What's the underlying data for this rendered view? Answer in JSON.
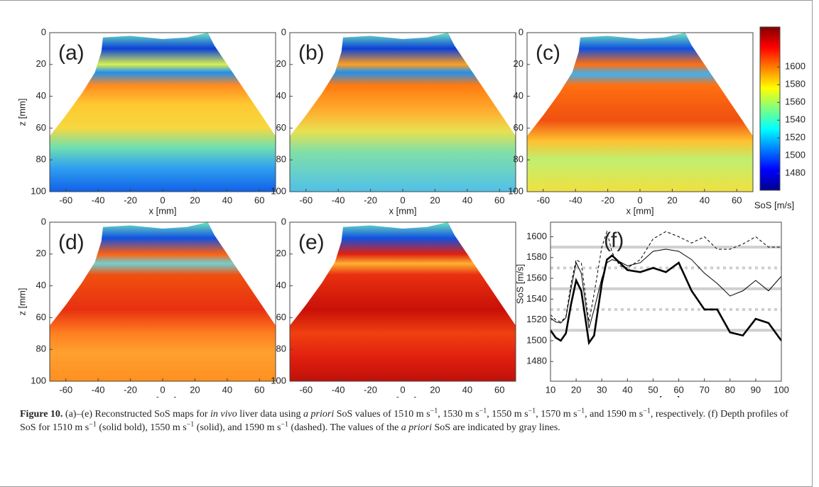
{
  "map_labels": [
    "(a)",
    "(b)",
    "(c)",
    "(d)",
    "(e)"
  ],
  "map_axes": {
    "xlabel": "x [mm]",
    "ylabel": "z [mm]",
    "xlim": [
      -70,
      70
    ],
    "ylim": [
      0,
      100
    ],
    "xticks": [
      -60,
      -40,
      -20,
      0,
      20,
      40,
      60
    ],
    "yticks": [
      0,
      20,
      40,
      60,
      80,
      100
    ]
  },
  "colorbar": {
    "label": "SoS [m/s]",
    "lim": [
      1461,
      1645
    ],
    "ticks": [
      1480,
      1500,
      1520,
      1540,
      1560,
      1580,
      1600
    ]
  },
  "chart_data": {
    "type": "line",
    "label": "(f)",
    "xlabel": "z [mm]",
    "ylabel": "SoS [m/s]",
    "xlim": [
      10,
      100
    ],
    "ylim": [
      1461,
      1614
    ],
    "xticks": [
      10,
      20,
      30,
      40,
      50,
      60,
      70,
      80,
      90,
      100
    ],
    "yticks": [
      1480,
      1500,
      1520,
      1540,
      1560,
      1580,
      1600
    ],
    "reference_lines": [
      1510,
      1530,
      1550,
      1570,
      1590
    ],
    "x": [
      10,
      12,
      14,
      16,
      18,
      20,
      22,
      25,
      27,
      30,
      32,
      34,
      37,
      40,
      45,
      50,
      55,
      60,
      65,
      70,
      75,
      80,
      85,
      90,
      95,
      100
    ],
    "series": [
      {
        "color": "#000000",
        "values": [
          1510,
          1503,
          1500,
          1507,
          1535,
          1558,
          1548,
          1498,
          1505,
          1555,
          1578,
          1582,
          1575,
          1568,
          1566,
          1570,
          1566,
          1575,
          1548,
          1530,
          1530,
          1508,
          1505,
          1521,
          1517,
          1500
        ]
      },
      {
        "color": "#000000",
        "values": [
          1522,
          1518,
          1517,
          1522,
          1550,
          1575,
          1565,
          1512,
          1530,
          1560,
          1575,
          1578,
          1576,
          1572,
          1575,
          1586,
          1588,
          1586,
          1578,
          1565,
          1555,
          1543,
          1548,
          1558,
          1548,
          1562
        ]
      },
      {
        "color": "#000000",
        "values": [
          1525,
          1520,
          1518,
          1523,
          1555,
          1578,
          1575,
          1518,
          1545,
          1590,
          1605,
          1585,
          1572,
          1570,
          1578,
          1598,
          1605,
          1600,
          1594,
          1600,
          1588,
          1588,
          1593,
          1600,
          1590,
          1590
        ]
      }
    ]
  },
  "caption": {
    "segments": [
      "Figure 10.",
      " (a)–(e) Reconstructed SoS maps for ",
      "in vivo",
      " liver data using ",
      "a priori",
      " SoS values of 1510 m s",
      "−1",
      ", 1530 m s",
      "−1",
      ", 1550 m s",
      "−1",
      ", 1570 m s",
      "−1",
      ", and 1590 m s",
      "−1",
      ", respectively. (f) Depth profiles of SoS for 1510 m s",
      "−1",
      " (solid bold), 1550 m s",
      "−1",
      " (solid), and 1590 m s",
      "−1",
      " (dashed). The values of the ",
      "a priori",
      " SoS are indicated by gray lines."
    ]
  }
}
